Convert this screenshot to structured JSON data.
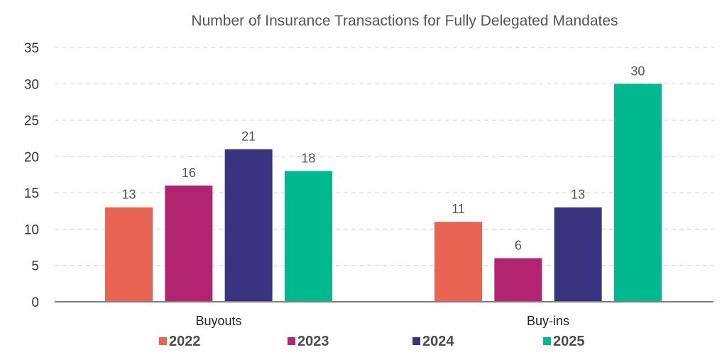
{
  "chart_data": {
    "type": "bar",
    "title": "Number of Insurance Transactions for Fully Delegated Mandates",
    "xlabel": "",
    "ylabel": "",
    "categories": [
      "Buyouts",
      "Buy-ins"
    ],
    "series": [
      {
        "name": "2022",
        "color": "#E86352",
        "values": [
          13,
          11
        ]
      },
      {
        "name": "2023",
        "color": "#B22370",
        "values": [
          16,
          6
        ]
      },
      {
        "name": "2024",
        "color": "#3A3480",
        "values": [
          21,
          13
        ]
      },
      {
        "name": "2025",
        "color": "#00B98E",
        "values": [
          18,
          30
        ]
      }
    ],
    "ylim": [
      0,
      35
    ],
    "yticks": [
      0,
      5,
      10,
      15,
      20,
      25,
      30,
      35
    ],
    "grid": true,
    "grid_style": "dashed-horizontal",
    "data_labels": true,
    "legend_position": "bottom"
  }
}
